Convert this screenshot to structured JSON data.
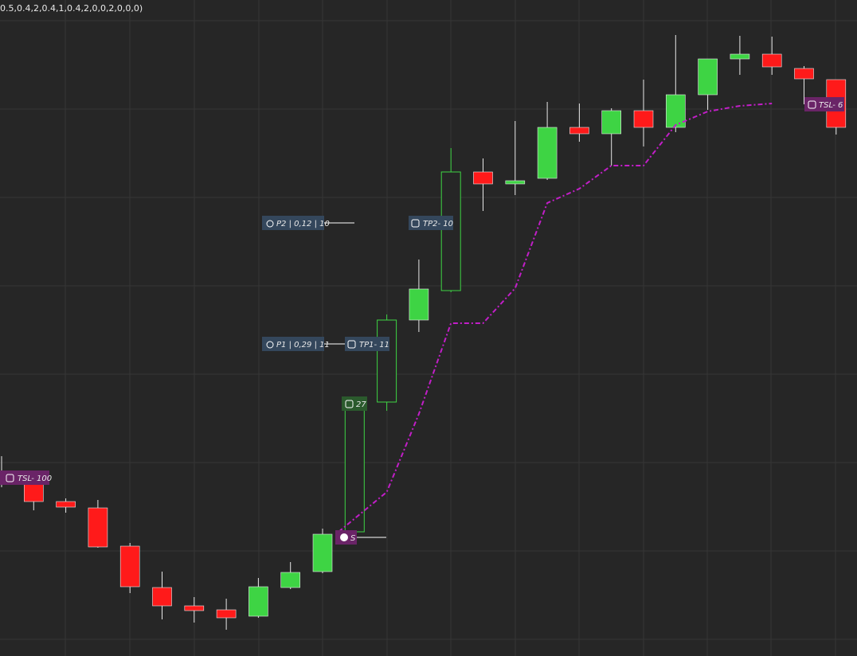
{
  "chart_data": {
    "type": "candlestick",
    "title": "0.5,0.4,2,0.4,1,0.4,2,0,0,2,0,0,0)",
    "ylim": [
      0,
      824
    ],
    "up_color": "#3ed444",
    "down_color": "#ff1a1a",
    "open": [
      232,
      224,
      194,
      186,
      138,
      86,
      63,
      58,
      50,
      86,
      106,
      156,
      319,
      422,
      459,
      608,
      593,
      600,
      664,
      656,
      685,
      664,
      705,
      750,
      756,
      738,
      724
    ],
    "high": [
      251,
      227,
      198,
      196,
      142,
      106,
      74,
      72,
      98,
      118,
      160,
      326,
      429,
      498,
      638,
      625,
      672,
      696,
      694,
      688,
      724,
      780,
      750,
      779,
      778,
      741,
      724
    ],
    "low": [
      212,
      183,
      180,
      136,
      79,
      46,
      42,
      33,
      48,
      84,
      104,
      154,
      308,
      407,
      457,
      559,
      579,
      598,
      646,
      616,
      640,
      658,
      686,
      730,
      730,
      693,
      655
    ],
    "close": [
      219,
      194,
      187,
      137,
      87,
      63,
      57,
      48,
      87,
      105,
      153,
      319,
      422,
      461,
      608,
      593,
      597,
      664,
      656,
      685,
      664,
      705,
      750,
      756,
      740,
      725,
      664
    ],
    "outlined": [
      false,
      false,
      false,
      false,
      false,
      false,
      false,
      false,
      false,
      false,
      false,
      true,
      true,
      false,
      true,
      false,
      false,
      false,
      false,
      false,
      false,
      false,
      false,
      false,
      false,
      false,
      false
    ],
    "trailing_stop": {
      "color": "#c21ec8",
      "x": [
        10.5,
        12,
        13,
        14,
        15,
        16,
        17,
        18,
        19,
        20,
        21,
        22,
        23,
        24
      ],
      "values": [
        156,
        206,
        304,
        418,
        418,
        462,
        569,
        587,
        616,
        616,
        667,
        684,
        691,
        694
      ]
    },
    "annotations": [
      "P2 | 0,12 | 10",
      "TP2- 10",
      "P1 | 0,29 | 11",
      "TP1- 11",
      "27",
      "S",
      "TSL- 100",
      "TSL- 6"
    ]
  }
}
